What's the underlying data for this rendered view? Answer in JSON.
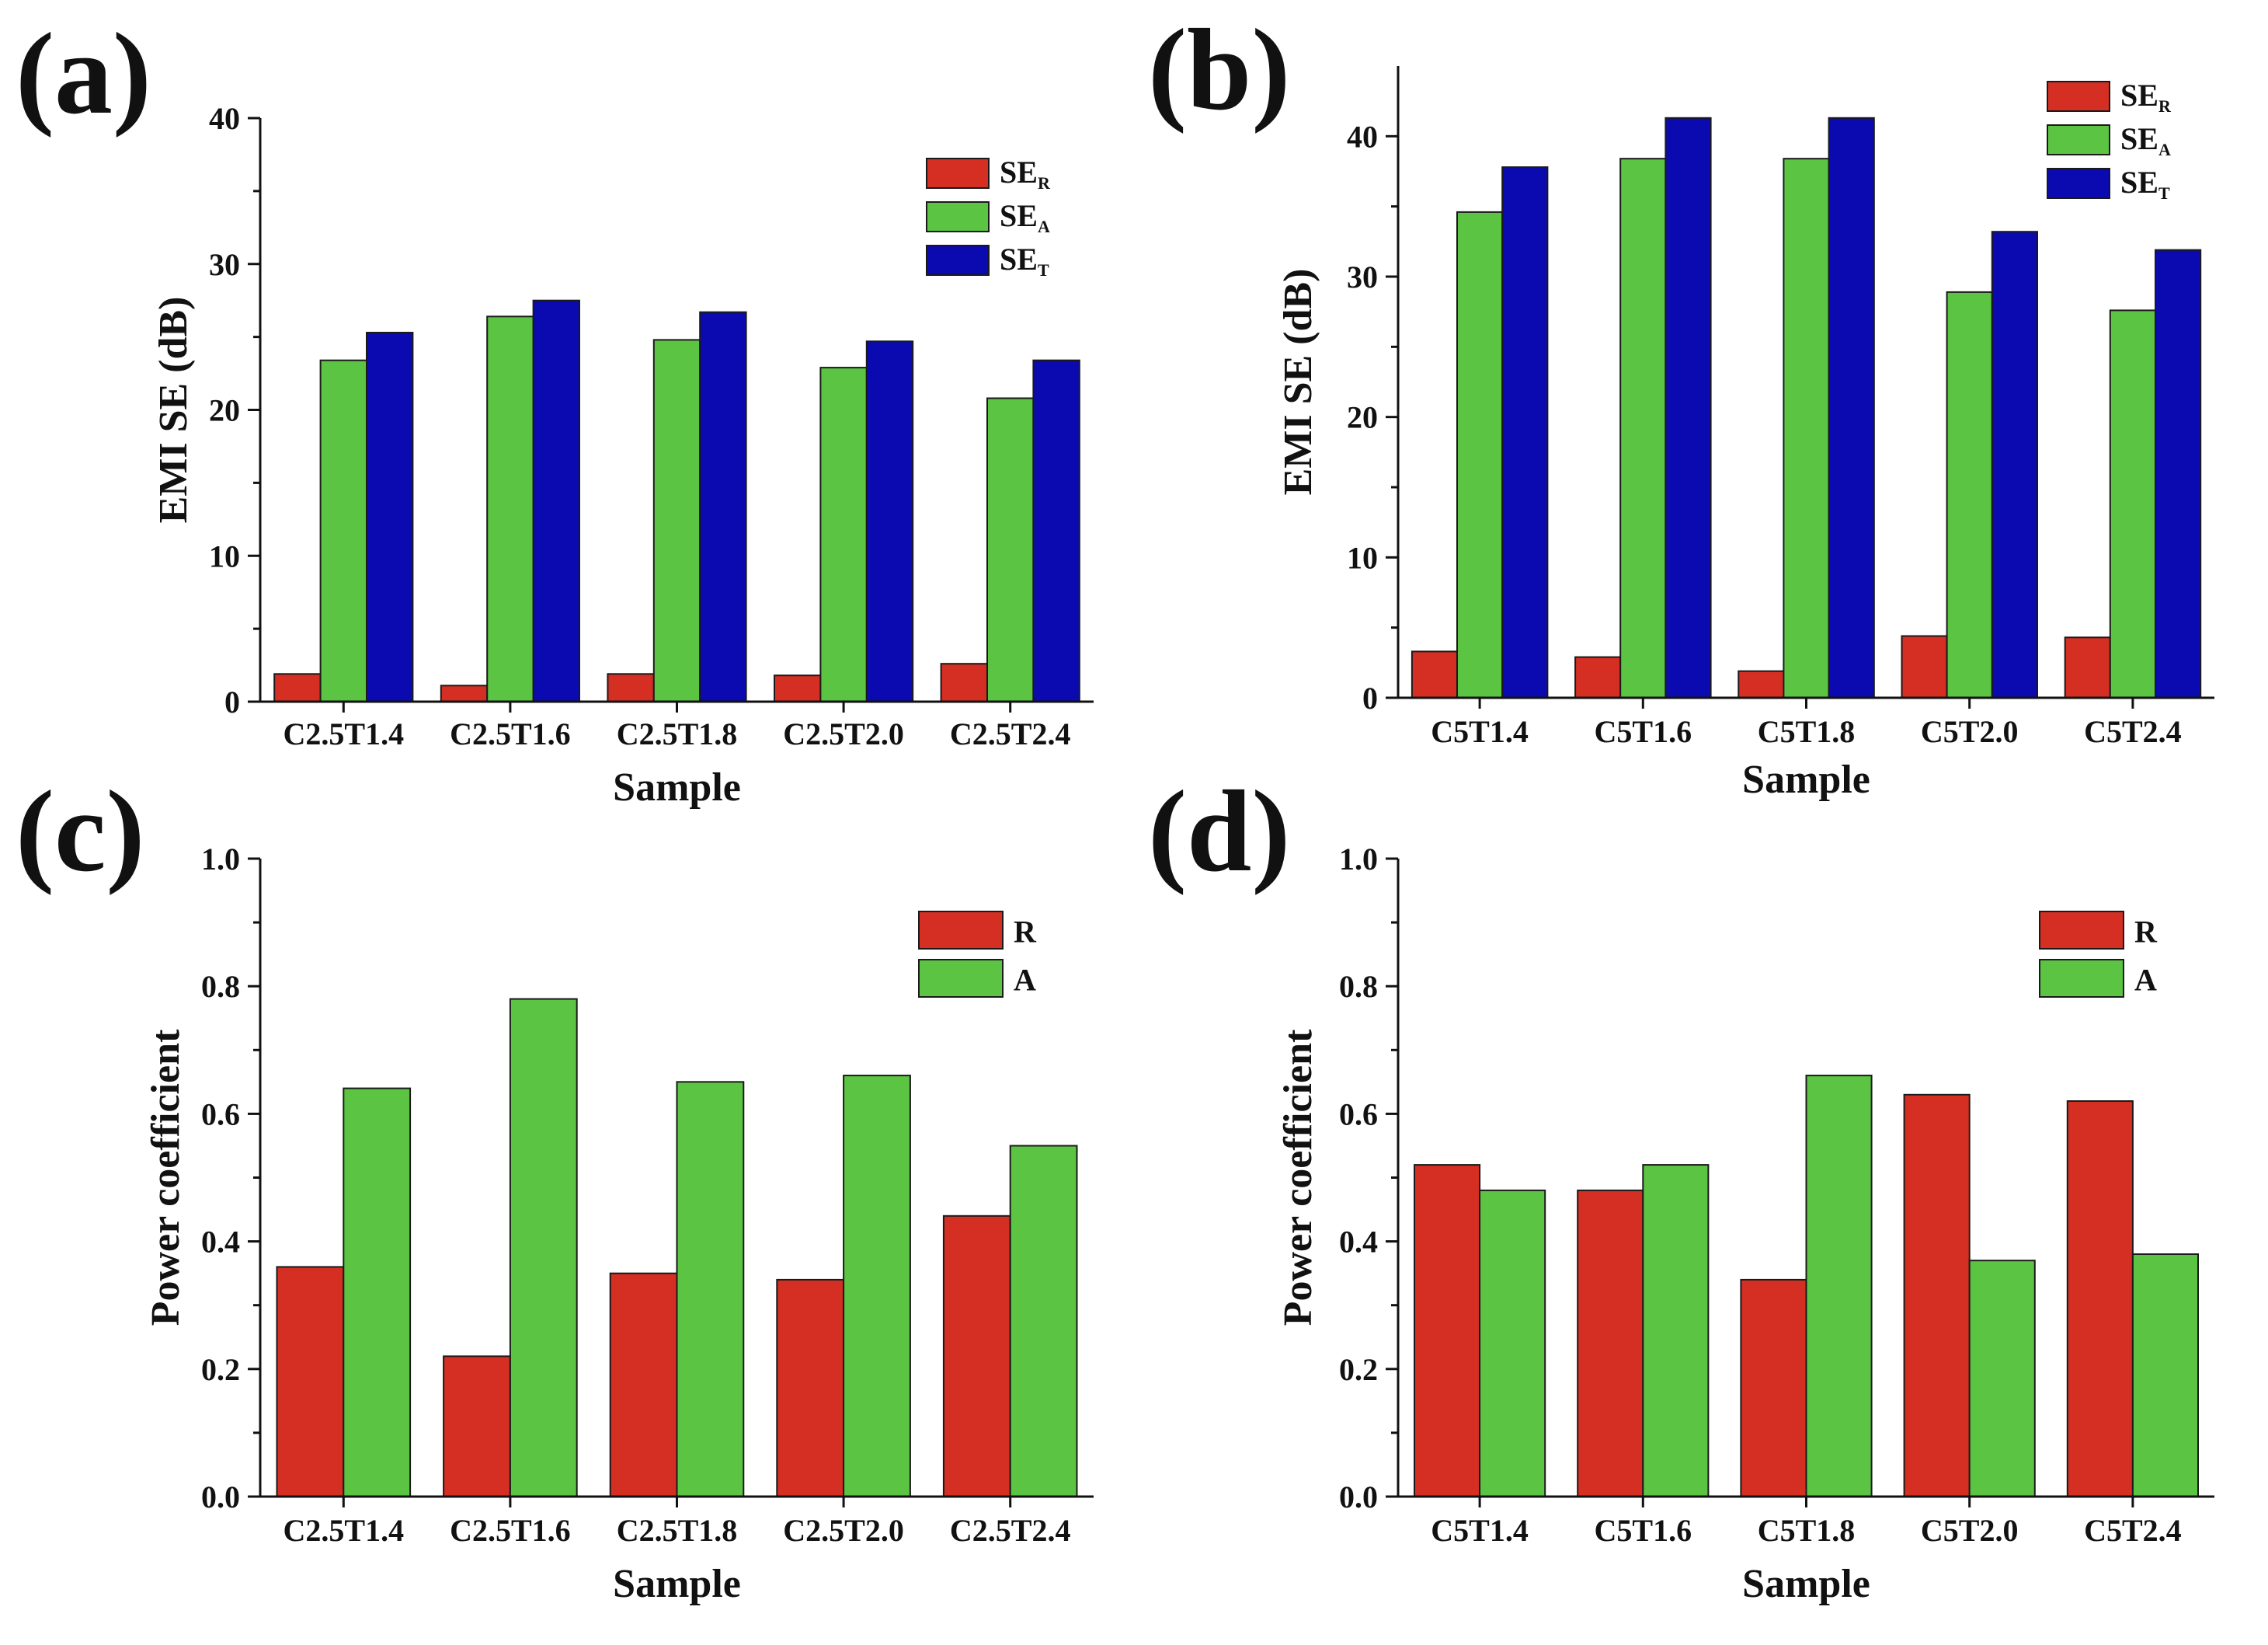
{
  "chart_data": [
    {
      "panel": "(a)",
      "type": "bar",
      "categories": [
        "C2.5T1.4",
        "C2.5T1.6",
        "C2.5T1.8",
        "C2.5T2.0",
        "C2.5T2.4"
      ],
      "series": [
        {
          "name": "SE",
          "sub": "R",
          "color": "#d42f22",
          "values": [
            1.9,
            1.1,
            1.9,
            1.8,
            2.6
          ]
        },
        {
          "name": "SE",
          "sub": "A",
          "color": "#5cc443",
          "values": [
            23.4,
            26.4,
            24.8,
            22.9,
            20.8
          ]
        },
        {
          "name": "SE",
          "sub": "T",
          "color": "#0a0ab0",
          "values": [
            25.3,
            27.5,
            26.7,
            24.7,
            23.4
          ]
        }
      ],
      "xlabel": "Sample",
      "ylabel": "EMI SE (dB)",
      "ylim": [
        0,
        40
      ],
      "yticks": [
        "0",
        "10",
        "20",
        "30",
        "40"
      ],
      "legend_position": "top-right"
    },
    {
      "panel": "(b)",
      "type": "bar",
      "categories": [
        "C5T1.4",
        "C5T1.6",
        "C5T1.8",
        "C5T2.0",
        "C5T2.4"
      ],
      "series": [
        {
          "name": "SE",
          "sub": "R",
          "color": "#d42f22",
          "values": [
            3.3,
            2.9,
            1.9,
            4.4,
            4.3
          ]
        },
        {
          "name": "SE",
          "sub": "A",
          "color": "#5cc443",
          "values": [
            34.6,
            38.4,
            38.4,
            28.9,
            27.6
          ]
        },
        {
          "name": "SE",
          "sub": "T",
          "color": "#0a0ab0",
          "values": [
            37.8,
            41.3,
            41.3,
            33.2,
            31.9
          ]
        }
      ],
      "xlabel": "Sample",
      "ylabel": "EMI SE (dB)",
      "ylim": [
        0,
        45
      ],
      "yticks": [
        "0",
        "10",
        "20",
        "30",
        "40"
      ],
      "legend_position": "top-right"
    },
    {
      "panel": "(c)",
      "type": "bar",
      "categories": [
        "C2.5T1.4",
        "C2.5T1.6",
        "C2.5T1.8",
        "C2.5T2.0",
        "C2.5T2.4"
      ],
      "series": [
        {
          "name": "R",
          "sub": "",
          "color": "#d42f22",
          "values": [
            0.36,
            0.22,
            0.35,
            0.34,
            0.44
          ]
        },
        {
          "name": "A",
          "sub": "",
          "color": "#5cc443",
          "values": [
            0.64,
            0.78,
            0.65,
            0.66,
            0.55
          ]
        }
      ],
      "xlabel": "Sample",
      "ylabel": "Power coefficient",
      "ylim": [
        0,
        1.0
      ],
      "yticks": [
        "0.0",
        "0.2",
        "0.4",
        "0.6",
        "0.8",
        "1.0"
      ],
      "legend_position": "top-right"
    },
    {
      "panel": "(d)",
      "type": "bar",
      "categories": [
        "C5T1.4",
        "C5T1.6",
        "C5T1.8",
        "C5T2.0",
        "C5T2.4"
      ],
      "series": [
        {
          "name": "R",
          "sub": "",
          "color": "#d42f22",
          "values": [
            0.52,
            0.48,
            0.34,
            0.63,
            0.62
          ]
        },
        {
          "name": "A",
          "sub": "",
          "color": "#5cc443",
          "values": [
            0.48,
            0.52,
            0.66,
            0.37,
            0.38
          ]
        }
      ],
      "xlabel": "Sample",
      "ylabel": "Power coefficient",
      "ylim": [
        0,
        1.0
      ],
      "yticks": [
        "0.0",
        "0.2",
        "0.4",
        "0.6",
        "0.8",
        "1.0"
      ],
      "legend_position": "top-right"
    }
  ]
}
